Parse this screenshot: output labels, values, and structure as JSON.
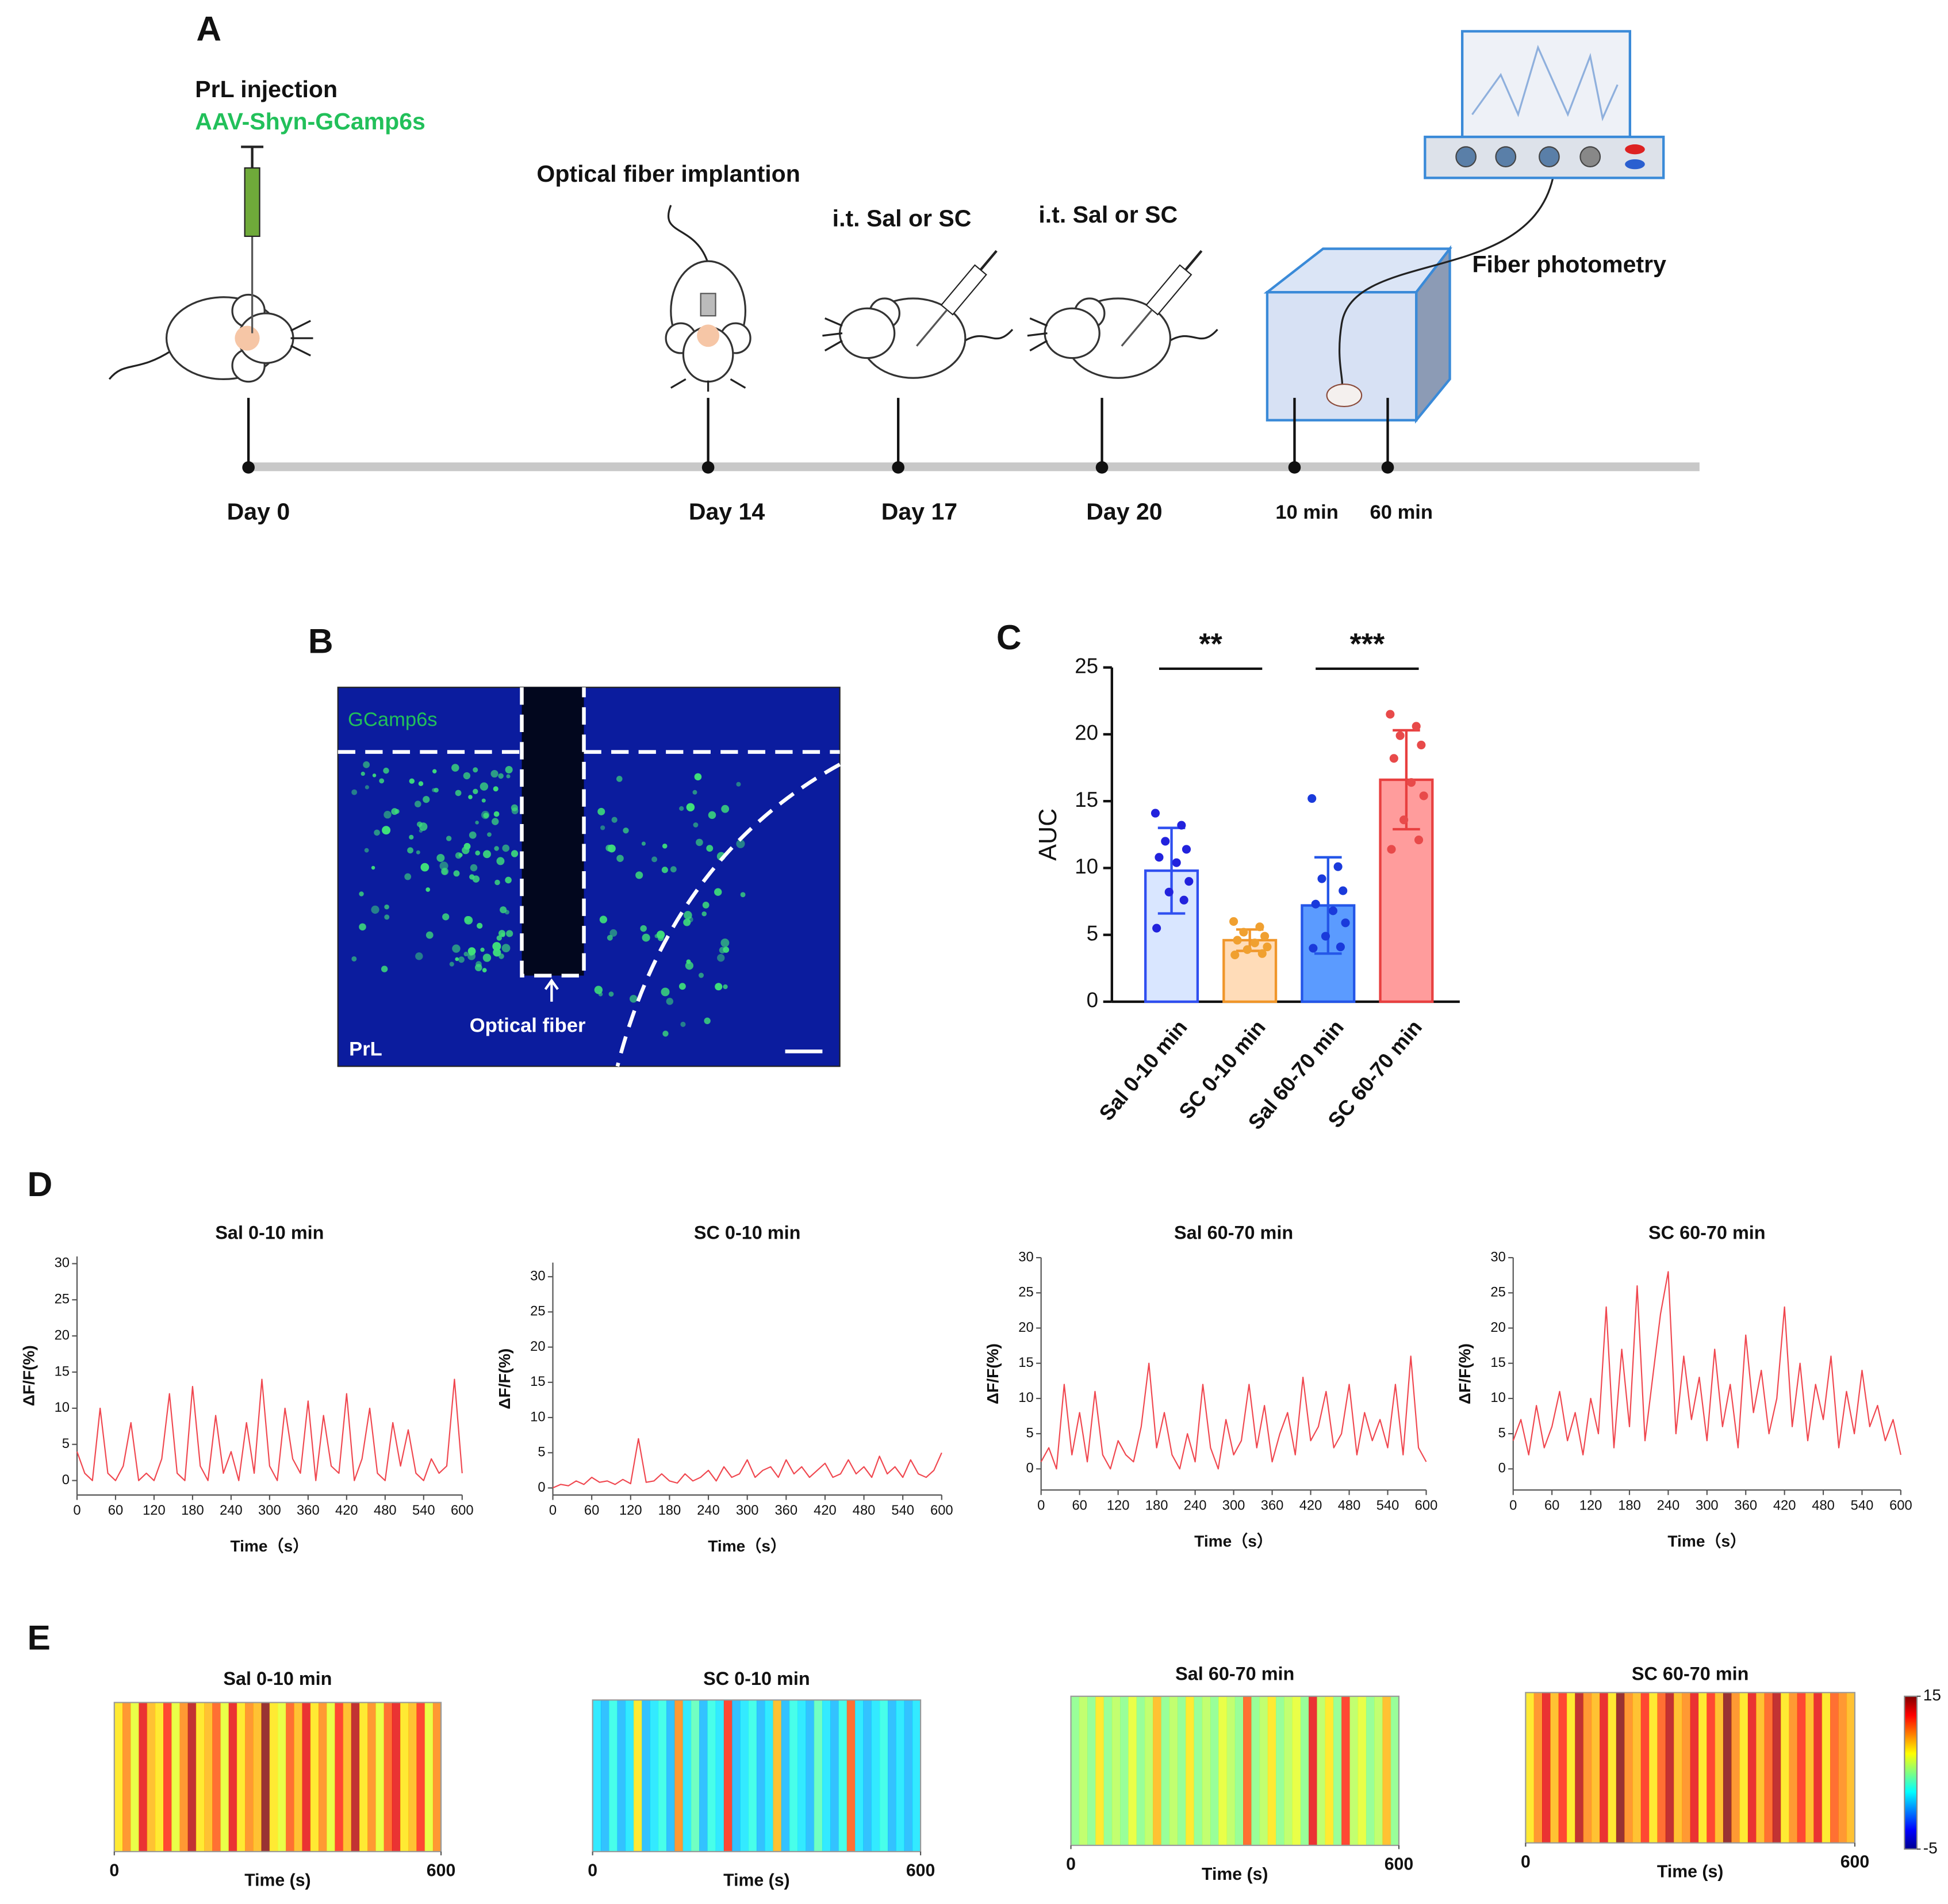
{
  "panel_labels": [
    "A",
    "B",
    "C",
    "D",
    "E"
  ],
  "panel_a": {
    "injection_title": "PrL injection",
    "virus": "AAV-Shyn-GCamp6s",
    "implant": "Optical fiber implantion",
    "treatment_1": "i.t. Sal or SC",
    "treatment_2": "i.t. Sal or SC",
    "recording": "Fiber photometry",
    "timeline": [
      "Day 0",
      "Day 14",
      "Day 17",
      "Day 20",
      "10 min",
      "60 min"
    ]
  },
  "panel_b": {
    "stain": "GCamp6s",
    "fiber": "Optical fiber",
    "region": "PrL"
  },
  "chart_data": [
    {
      "type": "bar",
      "ylabel": "AUC",
      "categories": [
        "Sal 0-10 min",
        "SC 0-10 min",
        "Sal 60-70 min",
        "SC 60-70 min"
      ],
      "values": [
        9.8,
        4.6,
        7.2,
        16.6
      ],
      "errors": [
        3.2,
        0.8,
        3.6,
        3.7
      ],
      "points": [
        [
          14.1,
          13.2,
          12.0,
          11.4,
          10.8,
          10.4,
          9.0,
          8.2,
          7.6,
          5.5
        ],
        [
          6.0,
          5.6,
          5.2,
          4.9,
          4.6,
          4.4,
          4.1,
          3.9,
          3.6,
          3.5
        ],
        [
          15.2,
          10.1,
          9.2,
          8.3,
          7.3,
          6.8,
          5.9,
          4.9,
          4.1,
          4.0
        ],
        [
          21.5,
          20.6,
          19.9,
          19.2,
          18.2,
          16.4,
          15.4,
          13.6,
          12.1,
          11.4
        ]
      ],
      "colors": [
        "#d9e6ff",
        "#ffdcb8",
        "#5b9bff",
        "#ff9c9c"
      ],
      "edge_colors": [
        "#2f4ff0",
        "#f0962a",
        "#2456e8",
        "#e84040"
      ],
      "point_colors": [
        "#2222dd",
        "#f0a030",
        "#1a3adb",
        "#e84a4a"
      ],
      "ylim": [
        0,
        25
      ],
      "yticks": [
        0,
        5,
        10,
        15,
        20,
        25
      ],
      "significance": [
        "**",
        "***"
      ]
    },
    {
      "type": "line",
      "title": "Sal 0-10 min",
      "xlabel": "Time（s）",
      "ylabel": "ΔF/F(%)",
      "color": "#f0474f",
      "x": [
        0,
        12,
        24,
        36,
        48,
        60,
        72,
        84,
        96,
        108,
        120,
        132,
        144,
        156,
        168,
        180,
        192,
        204,
        216,
        228,
        240,
        252,
        264,
        276,
        288,
        300,
        312,
        324,
        336,
        348,
        360,
        372,
        384,
        396,
        408,
        420,
        432,
        444,
        456,
        468,
        480,
        492,
        504,
        516,
        528,
        540,
        552,
        564,
        576,
        588,
        600
      ],
      "values": [
        4,
        1,
        0,
        10,
        1,
        0,
        2,
        8,
        0,
        1,
        0,
        3,
        12,
        1,
        0,
        13,
        2,
        0,
        9,
        1,
        4,
        0,
        8,
        1,
        14,
        2,
        0,
        10,
        3,
        1,
        11,
        0,
        9,
        2,
        1,
        12,
        0,
        3,
        10,
        1,
        0,
        8,
        2,
        7,
        1,
        0,
        3,
        1,
        2,
        14,
        1
      ],
      "xlim": [
        0,
        600
      ],
      "xticks": [
        0,
        60,
        120,
        180,
        240,
        300,
        360,
        420,
        480,
        540,
        600
      ],
      "ylim": [
        -2,
        31
      ],
      "yticks": [
        0,
        5,
        10,
        15,
        20,
        25,
        30
      ]
    },
    {
      "type": "line",
      "title": "SC 0-10 min",
      "xlabel": "Time（s）",
      "ylabel": "ΔF/F(%)",
      "color": "#f0474f",
      "x": [
        0,
        12,
        24,
        36,
        48,
        60,
        72,
        84,
        96,
        108,
        120,
        132,
        144,
        156,
        168,
        180,
        192,
        204,
        216,
        228,
        240,
        252,
        264,
        276,
        288,
        300,
        312,
        324,
        336,
        348,
        360,
        372,
        384,
        396,
        408,
        420,
        432,
        444,
        456,
        468,
        480,
        492,
        504,
        516,
        528,
        540,
        552,
        564,
        576,
        588,
        600
      ],
      "values": [
        0,
        0.5,
        0.3,
        1,
        0.5,
        1.5,
        0.8,
        1,
        0.5,
        1.2,
        0.6,
        7,
        0.8,
        1,
        2,
        1,
        0.7,
        2,
        1,
        1.5,
        2.5,
        1,
        3,
        1.5,
        2,
        4,
        1.5,
        2.5,
        3,
        1.5,
        4,
        2,
        3,
        1.5,
        2.5,
        3.5,
        1.5,
        2,
        4,
        2,
        3,
        1.5,
        4.5,
        2,
        3,
        1.5,
        4,
        2,
        1.5,
        2.5,
        5
      ],
      "xlim": [
        0,
        600
      ],
      "xticks": [
        0,
        60,
        120,
        180,
        240,
        300,
        360,
        420,
        480,
        540,
        600
      ],
      "ylim": [
        -1,
        32
      ],
      "yticks": [
        0,
        5,
        10,
        15,
        20,
        25,
        30
      ]
    },
    {
      "type": "line",
      "title": "Sal 60-70 min",
      "xlabel": "Time（s）",
      "ylabel": "ΔF/F(%)",
      "color": "#f0474f",
      "x": [
        0,
        12,
        24,
        36,
        48,
        60,
        72,
        84,
        96,
        108,
        120,
        132,
        144,
        156,
        168,
        180,
        192,
        204,
        216,
        228,
        240,
        252,
        264,
        276,
        288,
        300,
        312,
        324,
        336,
        348,
        360,
        372,
        384,
        396,
        408,
        420,
        432,
        444,
        456,
        468,
        480,
        492,
        504,
        516,
        528,
        540,
        552,
        564,
        576,
        588,
        600
      ],
      "values": [
        1,
        3,
        0,
        12,
        2,
        8,
        1,
        11,
        2,
        0,
        4,
        2,
        1,
        6,
        15,
        3,
        8,
        2,
        0,
        5,
        1,
        12,
        3,
        0,
        7,
        2,
        4,
        12,
        3,
        9,
        1,
        5,
        8,
        2,
        13,
        4,
        6,
        11,
        3,
        5,
        12,
        2,
        8,
        4,
        7,
        3,
        12,
        2,
        16,
        3,
        1
      ],
      "xlim": [
        0,
        600
      ],
      "xticks": [
        0,
        60,
        120,
        180,
        240,
        300,
        360,
        420,
        480,
        540,
        600
      ],
      "ylim": [
        -3,
        30
      ],
      "yticks": [
        0,
        5,
        10,
        15,
        20,
        25,
        30
      ]
    },
    {
      "type": "line",
      "title": "SC 60-70 min",
      "xlabel": "Time（s）",
      "ylabel": "ΔF/F(%)",
      "color": "#f0474f",
      "x": [
        0,
        12,
        24,
        36,
        48,
        60,
        72,
        84,
        96,
        108,
        120,
        132,
        144,
        156,
        168,
        180,
        192,
        204,
        216,
        228,
        240,
        252,
        264,
        276,
        288,
        300,
        312,
        324,
        336,
        348,
        360,
        372,
        384,
        396,
        408,
        420,
        432,
        444,
        456,
        468,
        480,
        492,
        504,
        516,
        528,
        540,
        552,
        564,
        576,
        588,
        600
      ],
      "values": [
        4,
        7,
        2,
        9,
        3,
        6,
        11,
        4,
        8,
        2,
        10,
        5,
        23,
        3,
        17,
        6,
        26,
        4,
        13,
        22,
        28,
        5,
        16,
        7,
        13,
        4,
        17,
        6,
        12,
        3,
        19,
        8,
        14,
        5,
        10,
        23,
        6,
        15,
        4,
        12,
        7,
        16,
        3,
        11,
        5,
        14,
        6,
        9,
        4,
        7,
        2
      ],
      "xlim": [
        0,
        600
      ],
      "xticks": [
        0,
        60,
        120,
        180,
        240,
        300,
        360,
        420,
        480,
        540,
        600
      ],
      "ylim": [
        -3,
        30
      ],
      "yticks": [
        0,
        5,
        10,
        15,
        20,
        25,
        30
      ]
    },
    {
      "type": "heatmap",
      "title": "Sal 0-10 min",
      "xlabel": "Time (s)",
      "xlim": [
        0,
        600
      ],
      "xticks": [
        0,
        600
      ],
      "clim": [
        -5,
        15
      ],
      "values": [
        8,
        10,
        7,
        13,
        9,
        8,
        12,
        7,
        10,
        14,
        8,
        9,
        11,
        7,
        13,
        8,
        10,
        9,
        15,
        8,
        7,
        11,
        9,
        13,
        8,
        10,
        7,
        12,
        9,
        14,
        8,
        10,
        7,
        11,
        13,
        8,
        9,
        12,
        7,
        10
      ]
    },
    {
      "type": "heatmap",
      "title": "SC 0-10 min",
      "xlabel": "Time (s)",
      "xlim": [
        0,
        600
      ],
      "xticks": [
        0,
        600
      ],
      "clim": [
        -5,
        15
      ],
      "values": [
        2,
        1,
        3,
        1,
        2,
        8,
        1,
        2,
        3,
        1,
        10,
        2,
        4,
        1,
        3,
        2,
        12,
        1,
        2,
        3,
        1,
        2,
        9,
        1,
        3,
        2,
        1,
        4,
        2,
        1,
        3,
        11,
        2,
        1,
        2,
        3,
        1,
        2,
        1,
        2
      ]
    },
    {
      "type": "heatmap",
      "title": "Sal 60-70 min",
      "xlabel": "Time (s)",
      "xlim": [
        0,
        600
      ],
      "xticks": [
        0,
        600
      ],
      "clim": [
        -5,
        15
      ],
      "values": [
        5,
        6,
        5,
        8,
        5,
        6,
        5,
        7,
        5,
        6,
        9,
        5,
        6,
        5,
        8,
        5,
        6,
        5,
        7,
        6,
        5,
        11,
        5,
        6,
        8,
        5,
        6,
        7,
        5,
        13,
        6,
        8,
        5,
        12,
        6,
        7,
        5,
        6,
        9,
        5
      ]
    },
    {
      "type": "heatmap",
      "title": "SC 60-70 min",
      "xlabel": "Time (s)",
      "xlim": [
        0,
        600
      ],
      "xticks": [
        0,
        600
      ],
      "clim": [
        -5,
        15
      ],
      "values": [
        8,
        10,
        13,
        9,
        12,
        8,
        14,
        10,
        9,
        13,
        8,
        15,
        10,
        9,
        12,
        8,
        11,
        14,
        9,
        10,
        13,
        8,
        12,
        9,
        15,
        10,
        8,
        13,
        9,
        11,
        14,
        8,
        10,
        12,
        9,
        13,
        8,
        11,
        10,
        9
      ],
      "colorbar_ticks": [
        15,
        -5
      ]
    }
  ]
}
